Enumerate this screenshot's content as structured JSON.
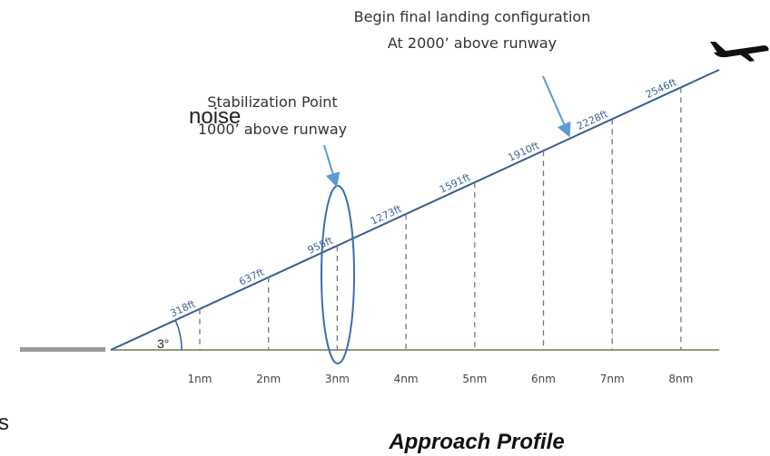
{
  "side_text": {
    "top": "noise",
    "bottom": "s"
  },
  "annotations": {
    "final_config": [
      "Begin final landing configuration",
      "At 2000’ above runway"
    ],
    "stabilization": [
      "Stabilization Point",
      "1000’ above runway"
    ]
  },
  "angle_label": "3°",
  "altitudes": [
    "318ft",
    "637ft",
    "955ft",
    "1273ft",
    "1591ft",
    "1910ft",
    "2228ft",
    "2546ft"
  ],
  "distances": [
    "1nm",
    "2nm",
    "3nm",
    "4nm",
    "5nm",
    "6nm",
    "7nm",
    "8nm"
  ],
  "caption": "Approach Profile"
}
